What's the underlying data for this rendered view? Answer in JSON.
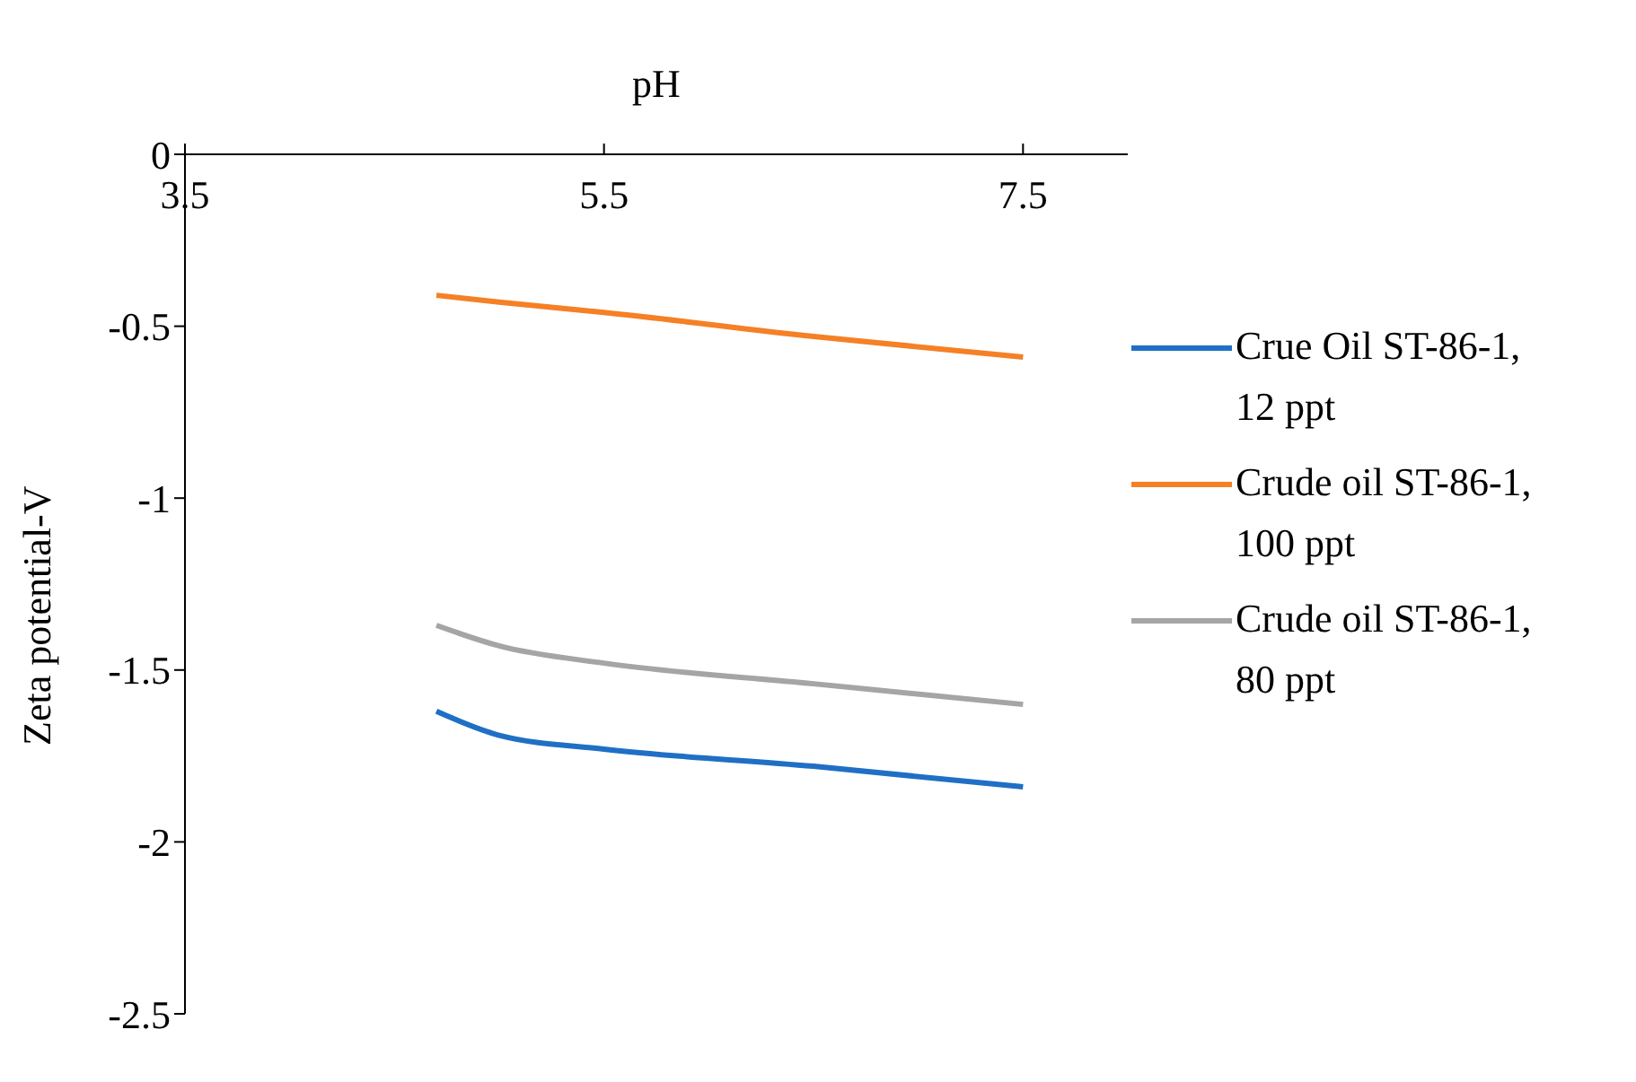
{
  "chart_data": {
    "type": "line",
    "xlabel": "pH",
    "ylabel": "Zeta potential-V",
    "x": [
      4.7,
      5,
      5.5,
      6.5,
      7.5
    ],
    "series": [
      {
        "name": "Crue Oil ST-86-1, 12 ppt",
        "color": "#1f6fc5",
        "values": [
          -1.62,
          -1.69,
          -1.73,
          -1.78,
          -1.84
        ]
      },
      {
        "name": "Crude oil ST-86-1, 100 ppt",
        "color": "#f58025",
        "values": [
          -0.41,
          -0.43,
          -0.46,
          -0.53,
          -0.59
        ]
      },
      {
        "name": "Crude oil ST-86-1, 80 ppt",
        "color": "#a5a5a5",
        "values": [
          -1.37,
          -1.43,
          -1.48,
          -1.54,
          -1.6
        ]
      }
    ],
    "xlim": [
      3.5,
      8
    ],
    "xticks": [
      3.5,
      5.5,
      7.5
    ],
    "ylim": [
      -2.5,
      0
    ],
    "yticks": [
      0,
      -0.5,
      -1,
      -1.5,
      -2,
      -2.5
    ],
    "grid": false,
    "legend": "right",
    "marker": "none",
    "line_style": "solid"
  }
}
